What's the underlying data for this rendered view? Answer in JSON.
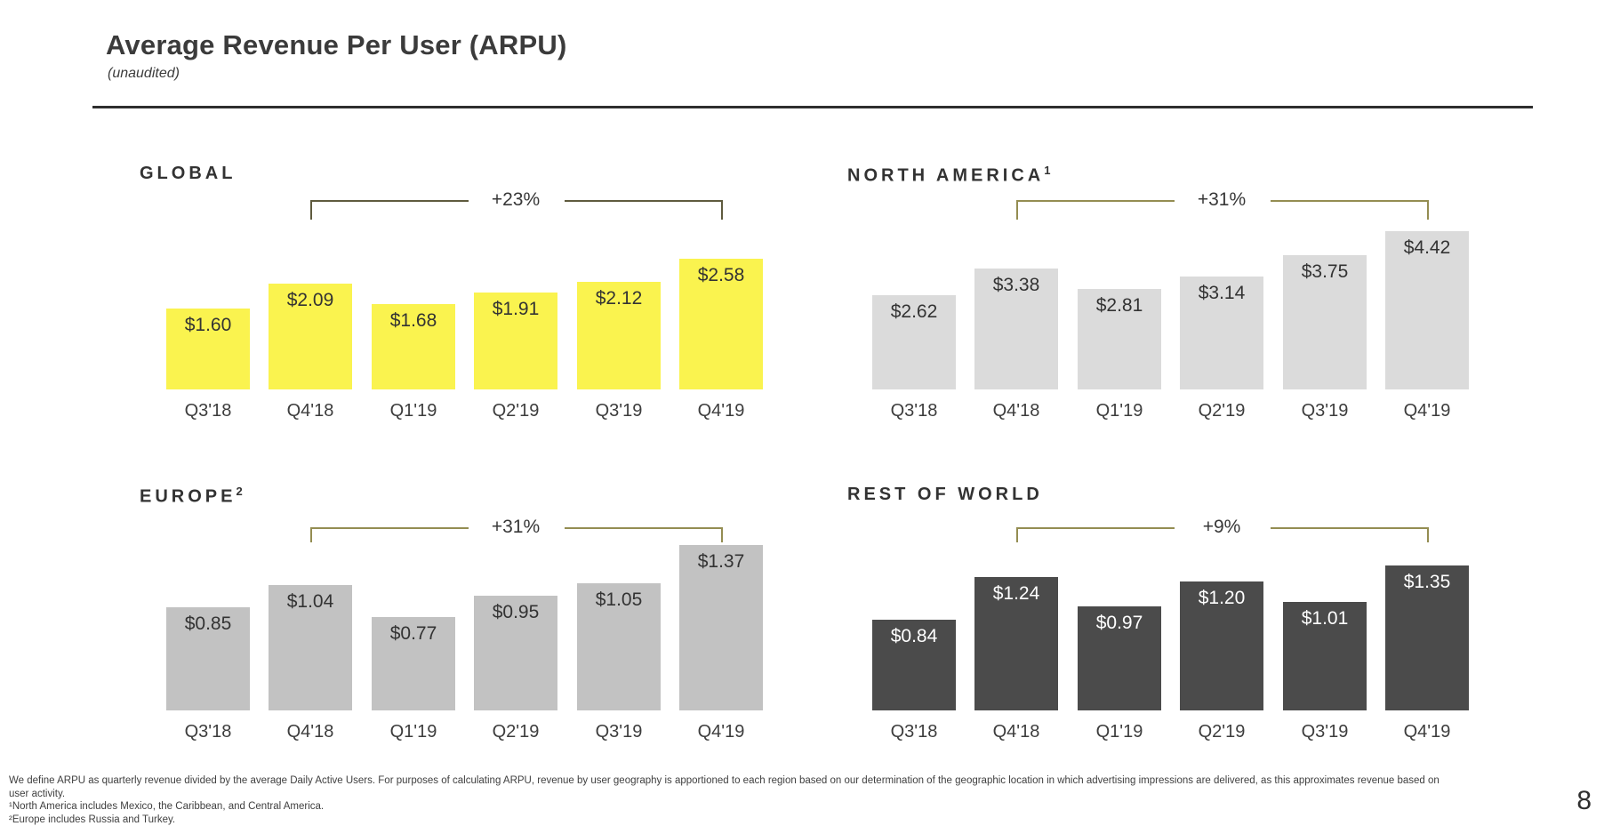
{
  "slide": {
    "title": "Average Revenue Per User (ARPU)",
    "subtitle": "(unaudited)",
    "page_number": "8",
    "footnotes": [
      "We define ARPU as quarterly revenue divided by the average Daily Active Users. For purposes of calculating ARPU, revenue by user geography is apportioned to each region based on our determination of the geographic location in which advertising impressions are delivered, as this approximates revenue based on",
      "user activity.",
      "¹North America includes Mexico, the Caribbean, and Central America.",
      "²Europe includes Russia and Turkey."
    ]
  },
  "chart_data": [
    {
      "id": "global",
      "type": "bar",
      "title": "GLOBAL",
      "title_sup": "",
      "categories": [
        "Q3'18",
        "Q4'18",
        "Q1'19",
        "Q2'19",
        "Q3'19",
        "Q4'19"
      ],
      "values": [
        1.6,
        2.09,
        1.68,
        1.91,
        2.12,
        2.58
      ],
      "value_labels": [
        "$1.60",
        "$2.09",
        "$1.68",
        "$1.91",
        "$2.12",
        "$2.58"
      ],
      "growth": {
        "label": "+23%",
        "from": "Q4'18",
        "to": "Q4'19"
      },
      "bar_color": "#faf34f",
      "value_color": "#333333",
      "bracket_color": "#5f5b3e",
      "ylim": [
        0,
        2.58
      ],
      "unit": "USD"
    },
    {
      "id": "na",
      "type": "bar",
      "title": "NORTH AMERICA",
      "title_sup": "1",
      "categories": [
        "Q3'18",
        "Q4'18",
        "Q1'19",
        "Q2'19",
        "Q3'19",
        "Q4'19"
      ],
      "values": [
        2.62,
        3.38,
        2.81,
        3.14,
        3.75,
        4.42
      ],
      "value_labels": [
        "$2.62",
        "$3.38",
        "$2.81",
        "$3.14",
        "$3.75",
        "$4.42"
      ],
      "growth": {
        "label": "+31%",
        "from": "Q4'18",
        "to": "Q4'19"
      },
      "bar_color": "#dbdbdb",
      "value_color": "#333333",
      "bracket_color": "#948d52",
      "ylim": [
        0,
        4.42
      ],
      "unit": "USD"
    },
    {
      "id": "europe",
      "type": "bar",
      "title": "EUROPE",
      "title_sup": "2",
      "categories": [
        "Q3'18",
        "Q4'18",
        "Q1'19",
        "Q2'19",
        "Q3'19",
        "Q4'19"
      ],
      "values": [
        0.85,
        1.04,
        0.77,
        0.95,
        1.05,
        1.37
      ],
      "value_labels": [
        "$0.85",
        "$1.04",
        "$0.77",
        "$0.95",
        "$1.05",
        "$1.37"
      ],
      "growth": {
        "label": "+31%",
        "from": "Q4'18",
        "to": "Q4'19"
      },
      "bar_color": "#c2c2c2",
      "value_color": "#333333",
      "bracket_color": "#948d52",
      "ylim": [
        0,
        1.37
      ],
      "unit": "USD"
    },
    {
      "id": "row",
      "type": "bar",
      "title": "REST OF WORLD",
      "title_sup": "",
      "categories": [
        "Q3'18",
        "Q4'18",
        "Q1'19",
        "Q2'19",
        "Q3'19",
        "Q4'19"
      ],
      "values": [
        0.84,
        1.24,
        0.97,
        1.2,
        1.01,
        1.35
      ],
      "value_labels": [
        "$0.84",
        "$1.24",
        "$0.97",
        "$1.20",
        "$1.01",
        "$1.35"
      ],
      "growth": {
        "label": "+9%",
        "from": "Q4'18",
        "to": "Q4'19"
      },
      "bar_color": "#4b4b4b",
      "value_color": "#ffffff",
      "bracket_color": "#948d52",
      "ylim": [
        0,
        1.35
      ],
      "unit": "USD"
    }
  ]
}
